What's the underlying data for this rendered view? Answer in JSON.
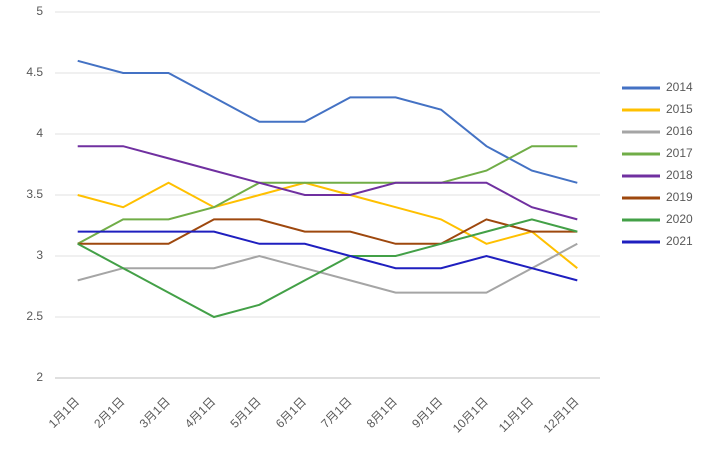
{
  "chart_data": {
    "type": "line",
    "categories": [
      "1月1日",
      "2月1日",
      "3月1日",
      "4月1日",
      "5月1日",
      "6月1日",
      "7月1日",
      "8月1日",
      "9月1日",
      "10月1日",
      "11月1日",
      "12月1日"
    ],
    "series": [
      {
        "name": "2014",
        "color": "#4472c4",
        "values": [
          4.6,
          4.5,
          4.5,
          4.3,
          4.1,
          4.1,
          4.3,
          4.3,
          4.2,
          3.9,
          3.7,
          3.6
        ]
      },
      {
        "name": "2015",
        "color": "#ffc000",
        "values": [
          3.5,
          3.4,
          3.6,
          3.4,
          3.5,
          3.6,
          3.5,
          3.4,
          3.3,
          3.1,
          3.2,
          2.9
        ]
      },
      {
        "name": "2016",
        "color": "#a5a5a5",
        "values": [
          2.8,
          2.9,
          2.9,
          2.9,
          3.0,
          2.9,
          2.8,
          2.7,
          2.7,
          2.7,
          2.9,
          3.1
        ]
      },
      {
        "name": "2017",
        "color": "#70ad47",
        "values": [
          3.1,
          3.3,
          3.3,
          3.4,
          3.6,
          3.6,
          3.6,
          3.6,
          3.6,
          3.7,
          3.9,
          3.9
        ]
      },
      {
        "name": "2018",
        "color": "#7030a0",
        "values": [
          3.9,
          3.9,
          3.8,
          3.7,
          3.6,
          3.5,
          3.5,
          3.6,
          3.6,
          3.6,
          3.4,
          3.3
        ]
      },
      {
        "name": "2019",
        "color": "#9e480e",
        "values": [
          3.1,
          3.1,
          3.1,
          3.3,
          3.3,
          3.2,
          3.2,
          3.1,
          3.1,
          3.3,
          3.2,
          3.2
        ]
      },
      {
        "name": "2020",
        "color": "#43a047",
        "values": [
          3.1,
          2.9,
          2.7,
          2.5,
          2.6,
          2.8,
          3.0,
          3.0,
          3.1,
          3.2,
          3.3,
          3.2
        ]
      },
      {
        "name": "2021",
        "color": "#1f1fbf",
        "values": [
          3.2,
          3.2,
          3.2,
          3.2,
          3.1,
          3.1,
          3.0,
          2.9,
          2.9,
          3.0,
          2.9,
          2.8
        ]
      }
    ],
    "ylim": [
      2,
      5
    ],
    "yticks": [
      2,
      2.5,
      3,
      3.5,
      4,
      4.5,
      5
    ],
    "grid": true
  }
}
